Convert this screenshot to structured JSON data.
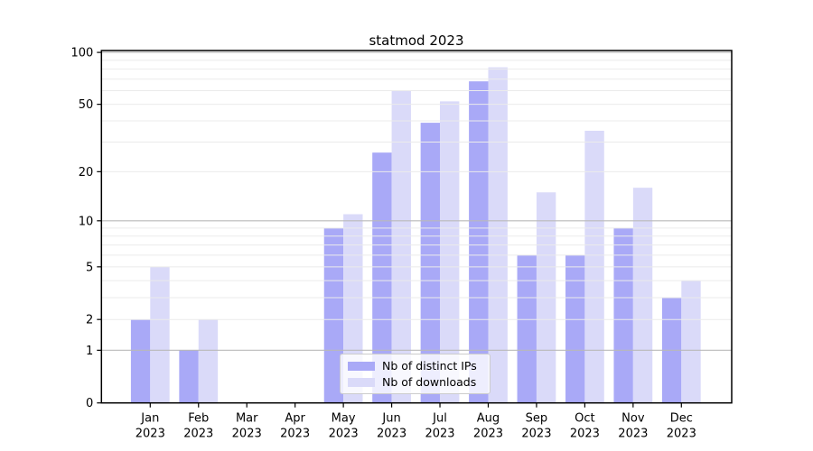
{
  "chart_data": {
    "type": "bar",
    "title": "statmod 2023",
    "categories": [
      "Jan",
      "Feb",
      "Mar",
      "Apr",
      "May",
      "Jun",
      "Jul",
      "Aug",
      "Sep",
      "Oct",
      "Nov",
      "Dec"
    ],
    "year_label": "2023",
    "series": [
      {
        "name": "Nb of distinct IPs",
        "color": "#a9a9f7",
        "values": [
          2,
          1,
          0,
          0,
          9,
          26,
          39,
          68,
          6,
          6,
          9,
          3
        ]
      },
      {
        "name": "Nb of downloads",
        "color": "#dadaf9",
        "values": [
          5,
          2,
          0,
          0,
          11,
          60,
          52,
          82,
          15,
          35,
          16,
          4
        ]
      }
    ],
    "yscale": "log1p",
    "ylim": [
      0,
      100
    ],
    "yticks": [
      0,
      1,
      2,
      5,
      10,
      20,
      50,
      100
    ],
    "major_gridlines": [
      1,
      10,
      100
    ],
    "minor_gridlines": [
      2,
      3,
      4,
      5,
      6,
      7,
      8,
      9,
      20,
      30,
      40,
      50,
      60,
      70,
      80,
      90
    ],
    "grid": true,
    "legend_position": "lower center",
    "colors": {
      "background": "#ffffff",
      "axis": "#000000",
      "major_grid": "#b9b9b9",
      "minor_grid": "#ebebeb",
      "tick_label": "#000000"
    }
  }
}
